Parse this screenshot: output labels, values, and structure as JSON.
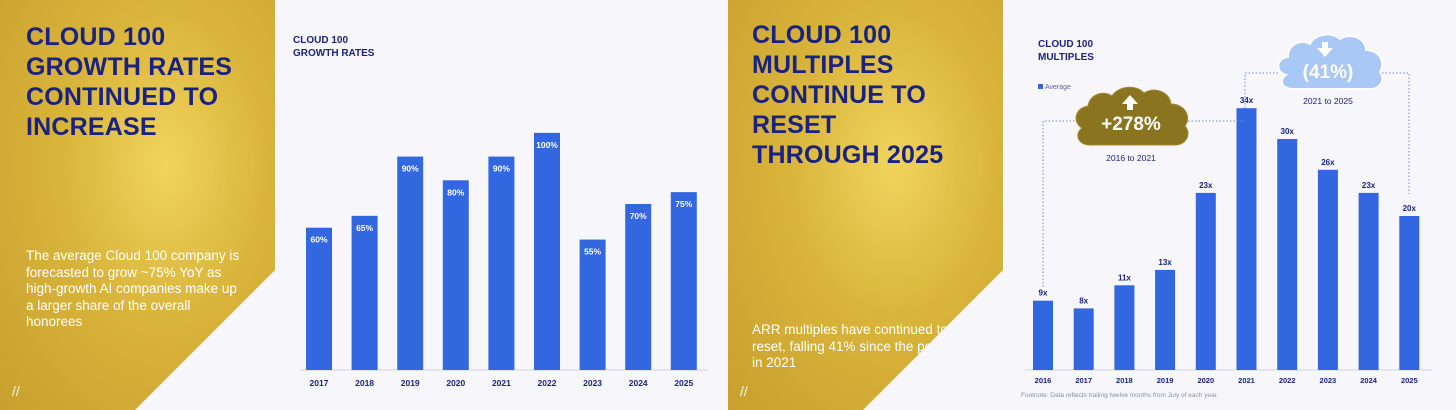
{
  "slide_left": {
    "headline": "CLOUD 100 GROWTH RATES CONTINUED TO INCREASE",
    "body": "The average Cloud 100 company is forecasted to grow ~75% YoY as high-growth AI companies make up a larger share of the overall honorees"
  },
  "slide_right": {
    "headline": "CLOUD 100 MULTIPLES CONTINUE TO RESET THROUGH 2025",
    "body": "ARR multiples have continued to reset, falling 41% since the peak in 2021",
    "footnote": "Footnote: Data reflects trailing twelve months from July of each year."
  },
  "colors": {
    "bar": "#3367e0",
    "navy": "#1a2380",
    "gold_badge": "#8a7420",
    "blue_badge": "#a9c8f5"
  },
  "chart_data": [
    {
      "type": "bar",
      "title": "CLOUD 100 GROWTH RATES",
      "categories": [
        "2017",
        "2018",
        "2019",
        "2020",
        "2021",
        "2022",
        "2023",
        "2024",
        "2025"
      ],
      "values": [
        60,
        65,
        90,
        80,
        90,
        100,
        55,
        70,
        75
      ],
      "labels": [
        "60%",
        "65%",
        "90%",
        "80%",
        "90%",
        "100%",
        "55%",
        "70%",
        "75%"
      ],
      "ylim": [
        0,
        140
      ],
      "label_position": "inside-top"
    },
    {
      "type": "bar",
      "title": "CLOUD 100 MULTIPLES",
      "legend": [
        "Average"
      ],
      "categories": [
        "2016",
        "2017",
        "2018",
        "2019",
        "2020",
        "2021",
        "2022",
        "2023",
        "2024",
        "2025"
      ],
      "values": [
        9,
        8,
        11,
        13,
        23,
        34,
        30,
        26,
        23,
        20
      ],
      "labels": [
        "9x",
        "8x",
        "11x",
        "13x",
        "23x",
        "34x",
        "30x",
        "26x",
        "23x",
        "20x"
      ],
      "ylim": [
        0,
        40
      ],
      "label_position": "above",
      "annotations": [
        {
          "text": "+278%",
          "caption": "2016 to 2021",
          "direction": "up",
          "from": "2016",
          "to": "2021"
        },
        {
          "text": "(41%)",
          "caption": "2021 to 2025",
          "direction": "down",
          "from": "2021",
          "to": "2025"
        }
      ]
    }
  ]
}
